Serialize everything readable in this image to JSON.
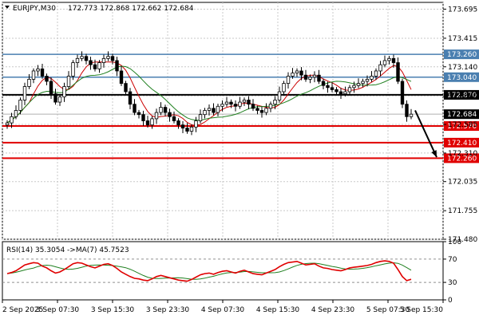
{
  "header": {
    "symbol": "EURJPY,M30",
    "ohlc": "172.773 172.868 172.662 172.684"
  },
  "rsi_header": "RSI(14) 35.3054 ->MA(7) 45.7523",
  "colors": {
    "grid": "#c8c8c8",
    "candle_up": "#000000",
    "candle_down": "#000000",
    "ma_fast": "#cc0000",
    "ma_slow": "#208020",
    "resistance": "#4a7fb0",
    "pivot": "#000000",
    "support": "#e00000",
    "rsi_line": "#e00000",
    "rsi_ma": "#208020"
  },
  "chart_data": {
    "type": "candlestick",
    "ylim": [
      171.48,
      173.76
    ],
    "y_ticks": [
      "173.695",
      "173.415",
      "173.140",
      "172.860",
      "172.585",
      "172.310",
      "172.035",
      "171.755",
      "171.480"
    ],
    "x_ticks": [
      "2 Sep 2025",
      "3 Sep 07:30",
      "3 Sep 15:30",
      "3 Sep 23:30",
      "4 Sep 07:30",
      "4 Sep 15:30",
      "4 Sep 23:30",
      "5 Sep 07:30",
      "5 Sep 15:30"
    ],
    "levels": [
      {
        "label": "173.260",
        "value": 173.26,
        "kind": "resistance"
      },
      {
        "label": "173.040",
        "value": 173.04,
        "kind": "resistance"
      },
      {
        "label": "172.870",
        "value": 172.87,
        "kind": "pivot"
      },
      {
        "label": "172.570",
        "value": 172.57,
        "kind": "support"
      },
      {
        "label": "172.410",
        "value": 172.41,
        "kind": "support"
      },
      {
        "label": "172.260",
        "value": 172.26,
        "kind": "support"
      }
    ],
    "current_price": {
      "label": "172.684",
      "value": 172.684
    },
    "closes": [
      172.6,
      172.66,
      172.72,
      172.82,
      172.95,
      173.02,
      173.1,
      173.12,
      173.05,
      173.0,
      172.88,
      172.8,
      172.85,
      172.95,
      173.05,
      173.18,
      173.22,
      173.24,
      173.2,
      173.16,
      173.12,
      173.18,
      173.22,
      173.24,
      173.2,
      173.1,
      172.98,
      172.9,
      172.78,
      172.7,
      172.68,
      172.62,
      172.58,
      172.64,
      172.7,
      172.75,
      172.7,
      172.66,
      172.62,
      172.58,
      172.55,
      172.52,
      172.56,
      172.62,
      172.68,
      172.72,
      172.74,
      172.7,
      172.76,
      172.78,
      172.8,
      172.78,
      172.76,
      172.8,
      172.82,
      172.78,
      172.74,
      172.72,
      172.7,
      172.74,
      172.78,
      172.82,
      172.9,
      172.98,
      173.05,
      173.08,
      173.1,
      173.06,
      173.02,
      173.04,
      173.06,
      173.0,
      172.96,
      172.94,
      172.92,
      172.9,
      172.88,
      172.9,
      172.94,
      172.96,
      172.98,
      173.0,
      173.02,
      173.05,
      173.1,
      173.16,
      173.2,
      173.22,
      173.18,
      173.0,
      172.78,
      172.66,
      172.684
    ],
    "rsi": {
      "ylim": [
        0,
        100
      ],
      "levels": [
        70,
        30
      ],
      "tick_labels": [
        "100",
        "70",
        "30",
        "0"
      ],
      "values": [
        45,
        47,
        50,
        55,
        60,
        62,
        64,
        63,
        58,
        55,
        50,
        46,
        48,
        52,
        57,
        62,
        64,
        63,
        60,
        57,
        55,
        58,
        61,
        62,
        59,
        54,
        48,
        44,
        40,
        37,
        36,
        34,
        33,
        36,
        40,
        42,
        40,
        38,
        36,
        34,
        33,
        32,
        35,
        39,
        43,
        45,
        46,
        44,
        47,
        49,
        50,
        48,
        46,
        49,
        51,
        48,
        45,
        44,
        43,
        46,
        49,
        52,
        57,
        61,
        64,
        65,
        66,
        63,
        60,
        61,
        62,
        58,
        55,
        54,
        52,
        51,
        50,
        52,
        55,
        56,
        57,
        58,
        59,
        61,
        64,
        66,
        67,
        66,
        63,
        52,
        40,
        33,
        35.3
      ]
    }
  }
}
